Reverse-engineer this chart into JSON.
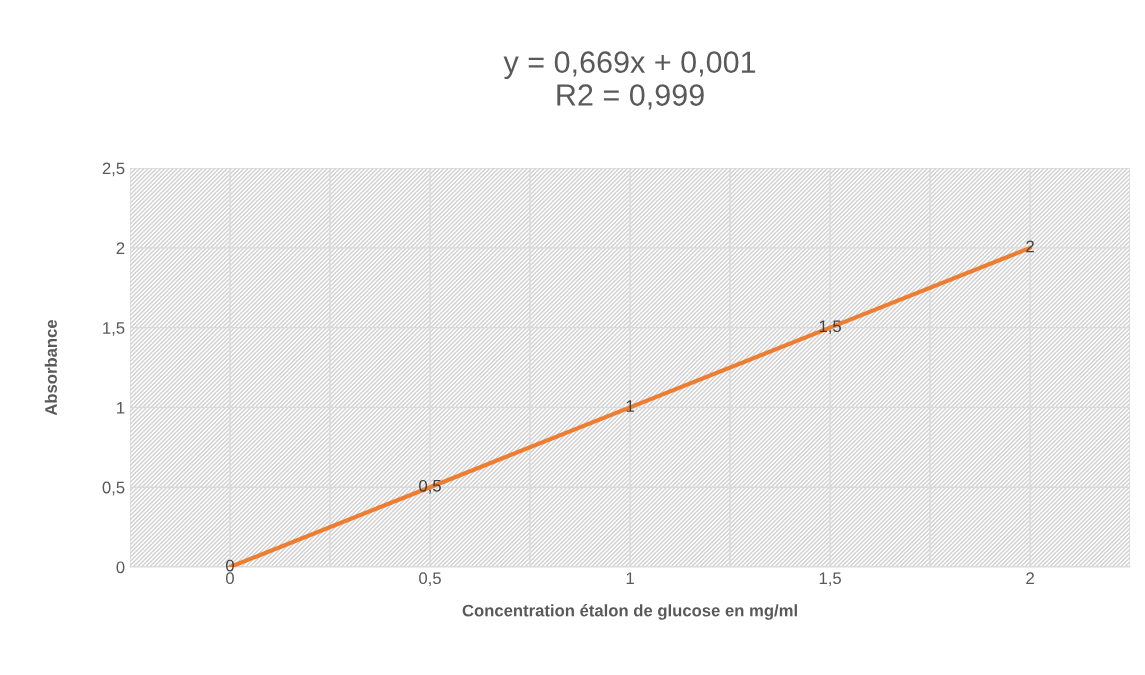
{
  "chart_data": {
    "type": "line",
    "title": "y = 0,669x + 0,001\nR2 = 0,999",
    "xlabel": "Concentration étalon de glucose en mg/ml",
    "ylabel": "Absorbance",
    "categories": [
      "0",
      "0,5",
      "1",
      "1,5",
      "2"
    ],
    "series": [
      {
        "color": "#ed7d31",
        "values": [
          0,
          0.5,
          1,
          1.5,
          2
        ],
        "value_labels": [
          "0",
          "0,5",
          "1",
          "1,5",
          "2"
        ]
      }
    ],
    "ylim": [
      0,
      2.5
    ],
    "yticks": [
      0,
      {
        "value": 0.5,
        "label": "0,5"
      },
      1,
      {
        "value": 1.5,
        "label": "1,5"
      },
      2,
      {
        "value": 2.5,
        "label": "2,5"
      }
    ],
    "grid": true,
    "marker": "none",
    "line_style": "solid"
  }
}
